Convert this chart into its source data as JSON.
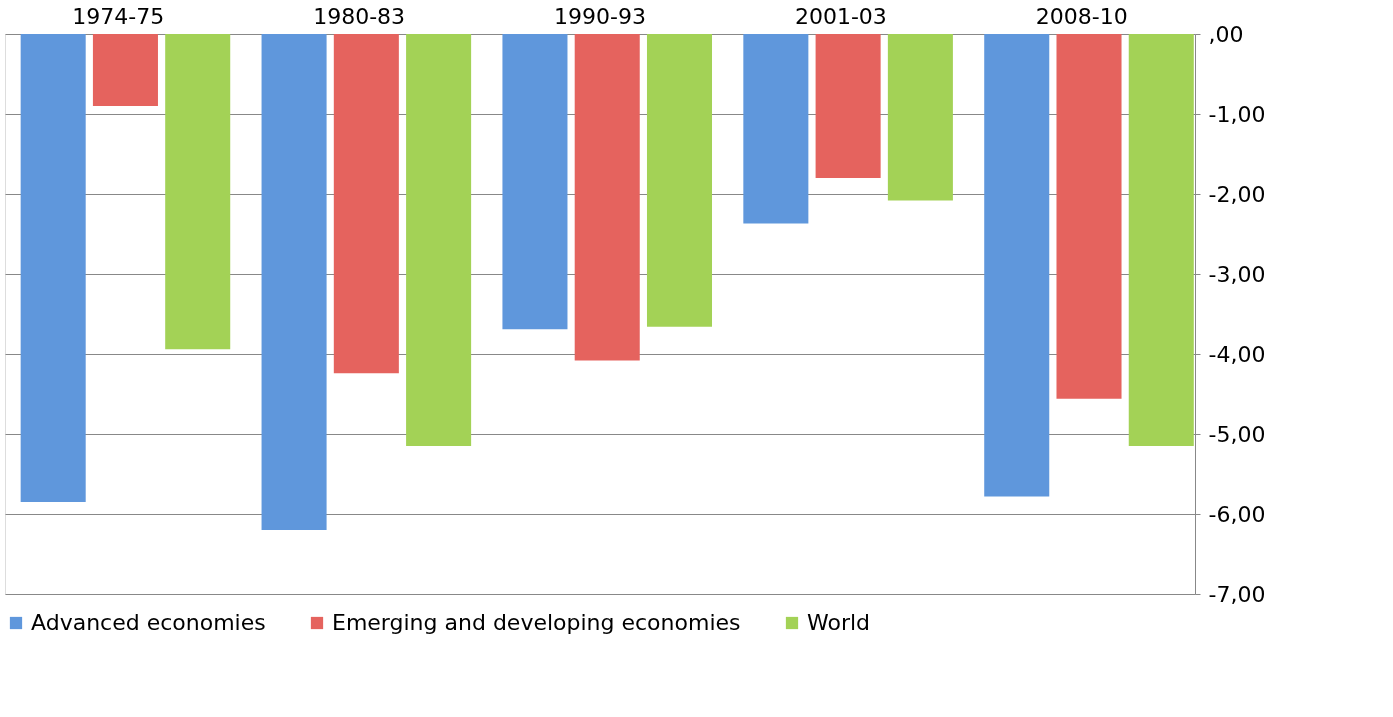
{
  "chart_data": {
    "type": "bar",
    "categories": [
      "1974-75",
      "1980-83",
      "1990-93",
      "2001-03",
      "2008-10"
    ],
    "series": [
      {
        "name": "Advanced economies",
        "color": "#5f97dc",
        "values": [
          -5.85,
          -6.2,
          -3.69,
          -2.37,
          -5.78
        ]
      },
      {
        "name": "Emerging and developing economies",
        "color": "#e5635e",
        "values": [
          -0.9,
          -4.24,
          -4.08,
          -1.8,
          -4.56
        ]
      },
      {
        "name": "World",
        "color": "#a3d256",
        "values": [
          -3.94,
          -5.15,
          -3.66,
          -2.08,
          -5.15
        ]
      }
    ],
    "ylim": [
      -7,
      0
    ],
    "yticks": [
      {
        "value": 0,
        "label": ",00"
      },
      {
        "value": -1,
        "label": "-1,00"
      },
      {
        "value": -2,
        "label": "-2,00"
      },
      {
        "value": -3,
        "label": "-3,00"
      },
      {
        "value": -4,
        "label": "-4,00"
      },
      {
        "value": -5,
        "label": "-5,00"
      },
      {
        "value": -6,
        "label": "-6,00"
      },
      {
        "value": -7,
        "label": "-7,00"
      }
    ],
    "grid": "y",
    "legend": "bottom"
  }
}
